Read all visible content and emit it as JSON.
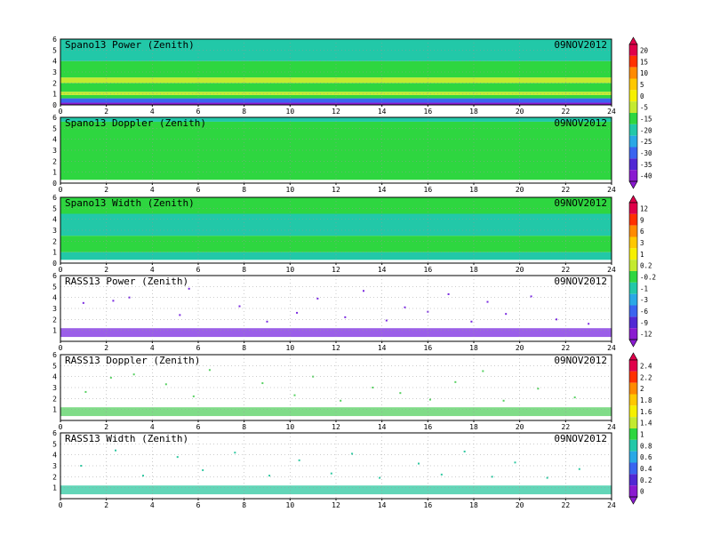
{
  "chart_data": [
    {
      "type": "heatmap",
      "title": "Spano13 Power (Zenith)",
      "date": "09NOV2012",
      "xlim": [
        0,
        24
      ],
      "ylim": [
        0,
        6
      ],
      "x_ticks": [
        "0",
        "2",
        "4",
        "6",
        "8",
        "10",
        "12",
        "14",
        "16",
        "18",
        "20",
        "22",
        "24"
      ],
      "y_ticks": [
        "0",
        "1",
        "2",
        "3",
        "4",
        "5",
        "6"
      ],
      "grid": true,
      "colorbar": {
        "ticks": [
          "20",
          "15",
          "10",
          "5",
          "0",
          "-5",
          "-15",
          "-20",
          "-25",
          "-30",
          "-35",
          "-40"
        ],
        "colors": [
          "#e0004a",
          "#ff3000",
          "#ff8a00",
          "#ffc800",
          "#f6f000",
          "#c4ea30",
          "#2ed640",
          "#22c8a8",
          "#2aa8e6",
          "#3a64f0",
          "#5028d4",
          "#8a1ad0"
        ]
      },
      "layers": [
        {
          "y": [
            0.0,
            0.2
          ],
          "color": "#8a1ad0",
          "value": -40
        },
        {
          "y": [
            0.2,
            0.6
          ],
          "color": "#3a64f0",
          "value": -30
        },
        {
          "y": [
            0.6,
            0.9
          ],
          "color": "#2ed640",
          "value": -15
        },
        {
          "y": [
            0.9,
            1.2
          ],
          "color": "#c4ea30",
          "value": -5
        },
        {
          "y": [
            1.2,
            2.0
          ],
          "color": "#2ed640",
          "value": -15
        },
        {
          "y": [
            2.0,
            2.5
          ],
          "color": "#c4ea30",
          "value": -5
        },
        {
          "y": [
            2.5,
            4.0
          ],
          "color": "#2ed640",
          "value": -15
        },
        {
          "y": [
            4.0,
            6.0
          ],
          "color": "#22c8a8",
          "value": -20
        }
      ]
    },
    {
      "type": "heatmap",
      "title": "Spano13 Doppler (Zenith)",
      "date": "09NOV2012",
      "xlim": [
        0,
        24
      ],
      "ylim": [
        0,
        6
      ],
      "x_ticks": [
        "0",
        "2",
        "4",
        "6",
        "8",
        "10",
        "12",
        "14",
        "16",
        "18",
        "20",
        "22",
        "24"
      ],
      "y_ticks": [
        "0",
        "1",
        "2",
        "3",
        "4",
        "5",
        "6"
      ],
      "grid": true,
      "layers": [
        {
          "y": [
            0.0,
            0.3
          ],
          "color": "#ffffff",
          "value": null
        },
        {
          "y": [
            0.3,
            5.6
          ],
          "color": "#2ed640",
          "value": 0
        },
        {
          "y": [
            5.6,
            6.0
          ],
          "color": "#22c8a8",
          "value": -0.2
        }
      ]
    },
    {
      "type": "heatmap",
      "title": "Spano13 Width (Zenith)",
      "date": "09NOV2012",
      "xlim": [
        0,
        24
      ],
      "ylim": [
        0,
        6
      ],
      "x_ticks": [
        "0",
        "2",
        "4",
        "6",
        "8",
        "10",
        "12",
        "14",
        "16",
        "18",
        "20",
        "22",
        "24"
      ],
      "y_ticks": [
        "0",
        "1",
        "2",
        "3",
        "4",
        "5",
        "6"
      ],
      "grid": true,
      "colorbar": {
        "ticks": [
          "12",
          "9",
          "6",
          "3",
          "1",
          "0.2",
          "-0.2",
          "-1",
          "-3",
          "-6",
          "-9",
          "-12"
        ],
        "colors": [
          "#e0004a",
          "#ff3000",
          "#ff8a00",
          "#ffc800",
          "#f6f000",
          "#c4ea30",
          "#2ed640",
          "#22c8a8",
          "#2aa8e6",
          "#3a64f0",
          "#5028d4",
          "#8a1ad0"
        ]
      },
      "layers": [
        {
          "y": [
            0.0,
            0.3
          ],
          "color": "#ffffff",
          "value": null
        },
        {
          "y": [
            0.3,
            1.0
          ],
          "color": "#22c8a8",
          "value": -1
        },
        {
          "y": [
            1.0,
            2.5
          ],
          "color": "#2ed640",
          "value": -0.2
        },
        {
          "y": [
            2.5,
            4.5
          ],
          "color": "#22c8a8",
          "value": -1
        },
        {
          "y": [
            4.5,
            6.0
          ],
          "color": "#2ed640",
          "value": -0.2
        }
      ]
    },
    {
      "type": "scatter",
      "title": "RASS13 Power (Zenith)",
      "date": "09NOV2012",
      "xlim": [
        0,
        24
      ],
      "ylim": [
        0,
        6
      ],
      "x_ticks": [
        "0",
        "2",
        "4",
        "6",
        "8",
        "10",
        "12",
        "14",
        "16",
        "18",
        "20",
        "22",
        "24"
      ],
      "y_ticks": [
        "1",
        "2",
        "3",
        "4",
        "5",
        "6"
      ],
      "grid": true,
      "band": {
        "y": [
          0.4,
          1.2
        ],
        "color": "#7a2ae0"
      },
      "points": [
        [
          1.0,
          3.5
        ],
        [
          2.3,
          3.7
        ],
        [
          3.0,
          4.0
        ],
        [
          5.2,
          2.4
        ],
        [
          5.6,
          4.8
        ],
        [
          7.8,
          3.2
        ],
        [
          9.0,
          1.8
        ],
        [
          10.3,
          2.6
        ],
        [
          11.2,
          3.9
        ],
        [
          12.4,
          2.2
        ],
        [
          13.2,
          4.6
        ],
        [
          14.2,
          1.9
        ],
        [
          15.0,
          3.1
        ],
        [
          16.0,
          2.7
        ],
        [
          16.9,
          4.3
        ],
        [
          17.9,
          1.8
        ],
        [
          18.6,
          3.6
        ],
        [
          19.4,
          2.5
        ],
        [
          20.5,
          4.1
        ],
        [
          21.6,
          2.0
        ],
        [
          23.0,
          1.6
        ]
      ]
    },
    {
      "type": "scatter",
      "title": "RASS13 Doppler (Zenith)",
      "date": "09NOV2012",
      "xlim": [
        0,
        24
      ],
      "ylim": [
        0,
        6
      ],
      "x_ticks": [
        "0",
        "2",
        "4",
        "6",
        "8",
        "10",
        "12",
        "14",
        "16",
        "18",
        "20",
        "22",
        "24"
      ],
      "y_ticks": [
        "1",
        "2",
        "3",
        "4",
        "5",
        "6"
      ],
      "grid": true,
      "colorbar": {
        "ticks": [
          "2.4",
          "2.2",
          "2",
          "1.8",
          "1.6",
          "1.4",
          "1",
          "0.8",
          "0.6",
          "0.4",
          "0.2",
          "0"
        ],
        "colors": [
          "#e0004a",
          "#ff3000",
          "#ff8a00",
          "#ffc800",
          "#f6f000",
          "#c4ea30",
          "#2ed640",
          "#22c8a8",
          "#2aa8e6",
          "#3a64f0",
          "#5028d4",
          "#8a1ad0"
        ]
      },
      "band": {
        "y": [
          0.4,
          1.2
        ],
        "color": "#56d060"
      },
      "points": [
        [
          1.1,
          2.6
        ],
        [
          2.2,
          3.9
        ],
        [
          3.2,
          4.2
        ],
        [
          4.6,
          3.3
        ],
        [
          5.8,
          2.2
        ],
        [
          6.5,
          4.6
        ],
        [
          8.8,
          3.4
        ],
        [
          10.2,
          2.3
        ],
        [
          11.0,
          4.0
        ],
        [
          12.2,
          1.8
        ],
        [
          13.6,
          3.0
        ],
        [
          14.8,
          2.5
        ],
        [
          16.1,
          1.9
        ],
        [
          17.2,
          3.5
        ],
        [
          18.4,
          4.5
        ],
        [
          19.3,
          1.8
        ],
        [
          20.8,
          2.9
        ],
        [
          22.4,
          2.1
        ]
      ]
    },
    {
      "type": "scatter",
      "title": "RASS13 Width (Zenith)",
      "date": "09NOV2012",
      "xlim": [
        0,
        24
      ],
      "ylim": [
        0,
        6
      ],
      "x_ticks": [
        "0",
        "2",
        "4",
        "6",
        "8",
        "10",
        "12",
        "14",
        "16",
        "18",
        "20",
        "22",
        "24"
      ],
      "y_ticks": [
        "1",
        "2",
        "3",
        "4",
        "5",
        "6"
      ],
      "grid": true,
      "band": {
        "y": [
          0.4,
          1.2
        ],
        "color": "#2ec8a0"
      },
      "points": [
        [
          0.9,
          3.0
        ],
        [
          2.4,
          4.4
        ],
        [
          3.6,
          2.1
        ],
        [
          5.1,
          3.8
        ],
        [
          6.2,
          2.6
        ],
        [
          7.6,
          4.2
        ],
        [
          9.1,
          2.1
        ],
        [
          10.4,
          3.5
        ],
        [
          11.8,
          2.3
        ],
        [
          12.7,
          4.1
        ],
        [
          13.9,
          1.9
        ],
        [
          15.6,
          3.2
        ],
        [
          16.6,
          2.2
        ],
        [
          17.6,
          4.3
        ],
        [
          18.8,
          2.0
        ],
        [
          19.8,
          3.3
        ],
        [
          21.2,
          1.9
        ],
        [
          22.6,
          2.7
        ]
      ]
    }
  ]
}
